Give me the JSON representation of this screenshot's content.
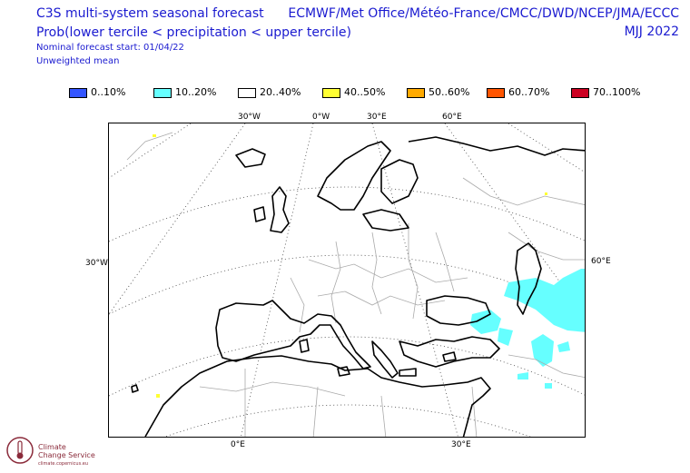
{
  "header": {
    "title": "C3S multi-system seasonal forecast",
    "variable": "Prob(lower tercile < precipitation < upper tercile)",
    "start": "Nominal forecast start: 01/04/22",
    "mean": "Unweighted mean",
    "centres": "ECMWF/Met Office/Météo-France/CMCC/DWD/NCEP/JMA/ECCC",
    "season": "MJJ 2022"
  },
  "legend": [
    {
      "label": "0..10%",
      "color": "#3355ff"
    },
    {
      "label": "10..20%",
      "color": "#66ffff"
    },
    {
      "label": "20..40%",
      "color": "#ffffff"
    },
    {
      "label": "40..50%",
      "color": "#ffff33"
    },
    {
      "label": "50..60%",
      "color": "#ffaa00"
    },
    {
      "label": "60..70%",
      "color": "#ff5500"
    },
    {
      "label": "70..100%",
      "color": "#cc0022"
    }
  ],
  "axes": {
    "top": [
      "30°W",
      "0°W",
      "30°E",
      "60°E"
    ],
    "left": "30°W",
    "right": "60°E",
    "bottom": [
      "0°E",
      "30°E"
    ]
  },
  "map_icons": {
    "shading": "cyan-probability-shading",
    "coast": "coastline",
    "borders": "country-borders",
    "grid": "graticule"
  },
  "logo": {
    "name_line1": "Climate",
    "name_line2": "Change Service",
    "tagline": "climate.copernicus.eu"
  }
}
